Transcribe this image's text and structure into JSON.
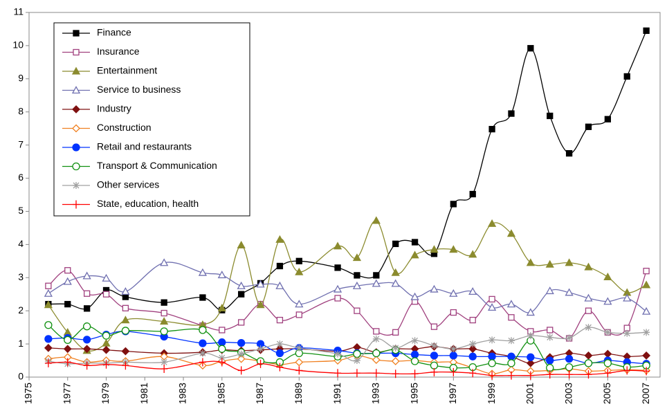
{
  "chart_data": {
    "type": "line",
    "x": [
      1976,
      1977,
      1978,
      1979,
      1980,
      1982,
      1984,
      1985,
      1986,
      1987,
      1988,
      1989,
      1991,
      1992,
      1993,
      1994,
      1995,
      1996,
      1997,
      1998,
      1999,
      2000,
      2001,
      2002,
      2003,
      2004,
      2005,
      2006,
      2007
    ],
    "xlim": [
      1975,
      2008
    ],
    "xticks": [
      1975,
      1977,
      1979,
      1981,
      1983,
      1985,
      1987,
      1989,
      1991,
      1993,
      1995,
      1997,
      1999,
      2001,
      2003,
      2005,
      2007
    ],
    "ylim": [
      0,
      11
    ],
    "yticks": [
      0,
      1,
      2,
      3,
      4,
      5,
      6,
      7,
      8,
      9,
      10,
      11
    ],
    "legend": "upper left",
    "series": [
      {
        "name": "Finance",
        "color": "#000000",
        "marker": "square",
        "filled": true,
        "values": [
          2.2,
          2.2,
          2.07,
          2.62,
          2.42,
          2.25,
          2.4,
          2.02,
          2.5,
          2.83,
          3.35,
          3.5,
          3.3,
          3.07,
          3.07,
          4.02,
          4.07,
          3.72,
          5.22,
          5.52,
          7.48,
          7.95,
          9.92,
          7.88,
          6.75,
          7.55,
          7.78,
          9.07,
          10.45
        ]
      },
      {
        "name": "Insurance",
        "color": "#a0407e",
        "marker": "square",
        "filled": false,
        "values": [
          2.75,
          3.22,
          2.52,
          2.5,
          2.08,
          1.93,
          1.55,
          1.42,
          1.65,
          2.2,
          1.72,
          1.88,
          2.38,
          2.0,
          1.38,
          1.35,
          2.28,
          1.52,
          1.95,
          1.72,
          2.35,
          1.8,
          1.38,
          1.42,
          1.17,
          2.0,
          1.35,
          1.48,
          3.2
        ]
      },
      {
        "name": "Entertainment",
        "color": "#8b8b2e",
        "marker": "triangle",
        "filled": true,
        "values": [
          2.18,
          1.35,
          0.8,
          1.02,
          1.72,
          1.68,
          1.58,
          2.08,
          3.98,
          2.18,
          4.15,
          3.17,
          3.95,
          3.6,
          4.72,
          3.15,
          3.68,
          3.85,
          3.85,
          3.7,
          4.63,
          4.33,
          3.45,
          3.4,
          3.45,
          3.32,
          3.02,
          2.55,
          2.78
        ]
      },
      {
        "name": "Service to business",
        "color": "#7070b0",
        "marker": "triangle",
        "filled": false,
        "values": [
          2.52,
          2.88,
          3.05,
          2.98,
          2.58,
          3.45,
          3.15,
          3.08,
          2.75,
          2.8,
          2.75,
          2.2,
          2.65,
          2.75,
          2.82,
          2.82,
          2.42,
          2.65,
          2.52,
          2.58,
          2.1,
          2.2,
          1.95,
          2.6,
          2.55,
          2.38,
          2.28,
          2.38,
          1.98
        ]
      },
      {
        "name": "Industry",
        "color": "#7f1010",
        "marker": "diamond",
        "filled": true,
        "values": [
          0.88,
          0.85,
          0.85,
          0.82,
          0.78,
          0.72,
          0.75,
          0.82,
          0.8,
          0.82,
          0.85,
          0.85,
          0.78,
          0.9,
          0.75,
          0.85,
          0.85,
          0.92,
          0.85,
          0.85,
          0.72,
          0.62,
          0.42,
          0.6,
          0.72,
          0.65,
          0.7,
          0.62,
          0.65
        ]
      },
      {
        "name": "Construction",
        "color": "#f08020",
        "marker": "diamond",
        "filled": false,
        "values": [
          0.55,
          0.6,
          0.45,
          0.5,
          0.48,
          0.62,
          0.35,
          0.48,
          0.55,
          0.48,
          0.38,
          0.45,
          0.5,
          0.65,
          0.52,
          0.48,
          0.5,
          0.45,
          0.45,
          0.28,
          0.1,
          0.22,
          0.18,
          0.2,
          0.25,
          0.18,
          0.2,
          0.22,
          0.2
        ]
      },
      {
        "name": "Retail and restaurants",
        "color": "#0033ff",
        "marker": "circle",
        "filled": true,
        "values": [
          1.15,
          1.18,
          1.13,
          1.28,
          1.38,
          1.22,
          1.02,
          1.05,
          1.03,
          1.0,
          0.72,
          0.88,
          0.8,
          0.72,
          0.72,
          0.72,
          0.68,
          0.65,
          0.65,
          0.62,
          0.62,
          0.62,
          0.6,
          0.5,
          0.55,
          0.42,
          0.5,
          0.45,
          0.4
        ]
      },
      {
        "name": "Transport & Communication",
        "color": "#109010",
        "marker": "circle",
        "filled": false,
        "values": [
          1.57,
          1.12,
          1.53,
          1.25,
          1.4,
          1.38,
          1.42,
          0.85,
          0.75,
          0.48,
          0.45,
          0.72,
          0.62,
          0.7,
          0.72,
          0.82,
          0.48,
          0.35,
          0.28,
          0.3,
          0.42,
          0.42,
          1.1,
          0.28,
          0.3,
          0.42,
          0.42,
          0.3,
          0.35
        ]
      },
      {
        "name": "Other services",
        "color": "#a0a0a0",
        "marker": "star",
        "filled": false,
        "values": [
          0.48,
          0.4,
          0.42,
          0.42,
          0.45,
          0.45,
          0.72,
          0.58,
          0.7,
          0.85,
          1.0,
          0.88,
          0.7,
          0.5,
          1.15,
          0.88,
          1.1,
          0.95,
          0.85,
          1.0,
          1.12,
          1.1,
          1.25,
          1.2,
          1.18,
          1.5,
          1.35,
          1.32,
          1.35
        ]
      },
      {
        "name": "State, education, health",
        "color": "#ff0000",
        "marker": "plus",
        "filled": false,
        "values": [
          0.42,
          0.45,
          0.35,
          0.38,
          0.35,
          0.25,
          0.45,
          0.45,
          0.2,
          0.4,
          0.3,
          0.2,
          0.12,
          0.12,
          0.12,
          0.1,
          0.1,
          0.15,
          0.15,
          0.12,
          0.05,
          0.05,
          0.05,
          0.08,
          0.08,
          0.08,
          0.12,
          0.2,
          0.18
        ]
      }
    ]
  }
}
